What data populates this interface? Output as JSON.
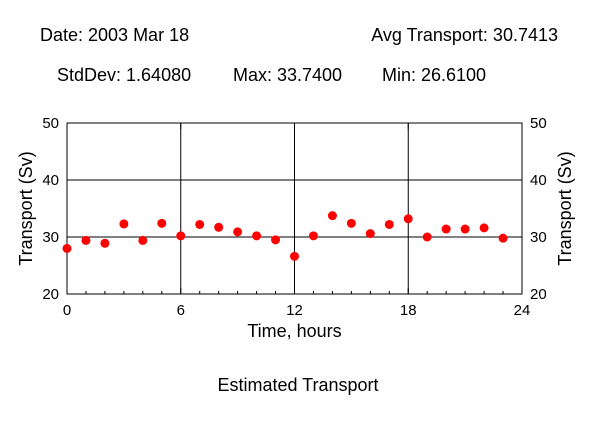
{
  "header": {
    "date": "Date: 2003 Mar 18",
    "avg": "Avg Transport: 30.7413",
    "stddev": "StdDev: 1.64080",
    "max": "Max: 33.7400",
    "min": "Min: 26.6100"
  },
  "caption": "Estimated Transport",
  "colors": {
    "point": "#ff0000",
    "axis": "#000000",
    "background": "#ffffff"
  },
  "chart_data": {
    "type": "scatter",
    "title": "Estimated Transport",
    "xlabel": "Time, hours",
    "ylabel": "Transport (Sv)",
    "ylabel_right": "Transport (Sv)",
    "xlim": [
      0,
      24
    ],
    "ylim": [
      20,
      50
    ],
    "xticks": [
      0,
      6,
      12,
      18,
      24
    ],
    "yticks": [
      20,
      30,
      40,
      50
    ],
    "grid": true,
    "x": [
      0,
      1,
      2,
      3,
      4,
      5,
      6,
      7,
      8,
      9,
      10,
      11,
      12,
      13,
      14,
      15,
      16,
      17,
      18,
      19,
      20,
      21,
      22,
      23
    ],
    "y": [
      28.0,
      29.4,
      28.9,
      32.3,
      29.4,
      32.4,
      30.2,
      32.2,
      31.7,
      30.9,
      30.2,
      29.5,
      26.61,
      30.2,
      33.74,
      32.4,
      30.6,
      32.2,
      33.2,
      30.0,
      31.4,
      31.4,
      31.6,
      29.8
    ]
  }
}
